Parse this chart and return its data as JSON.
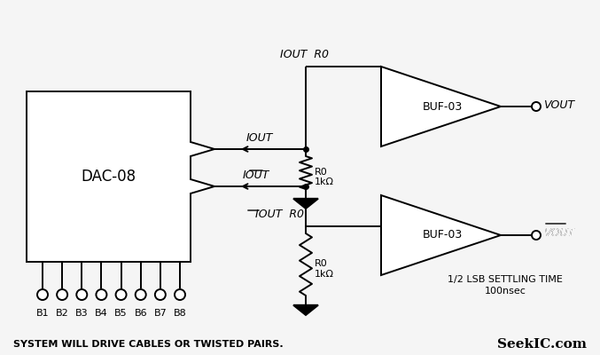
{
  "background_color": "#f5f5f5",
  "line_color": "#000000",
  "text_color": "#000000",
  "bottom_text": "SYSTEM WILL DRIVE CABLES OR TWISTED PAIRS.",
  "seekic_text": "SeekIC.com",
  "settling_time_text1": "1/2 LSB SETTLING TIME",
  "settling_time_text2": "100nsec",
  "dac_label": "DAC-08",
  "buf_label": "BUF-03",
  "bit_labels": [
    "B1",
    "B2",
    "B3",
    "B4",
    "B5",
    "B6",
    "B7",
    "B8"
  ],
  "figsize": [
    6.77,
    4.0
  ],
  "dpi": 100
}
